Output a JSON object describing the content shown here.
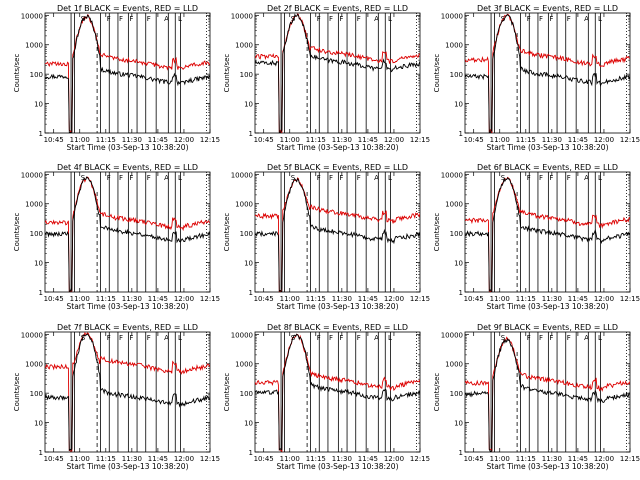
{
  "figure": {
    "background": "#ffffff",
    "colors": {
      "events": "#000000",
      "lld": "#dd0000",
      "axis": "#000000"
    }
  },
  "chart_data": [
    {
      "type": "line",
      "title": "Det 1f BLACK = Events, RED = LLD",
      "xlabel": "Start Time (03-Sep-13 10:38:20)",
      "ylabel": "Counts/sec",
      "yscale": "log",
      "ylim": [
        1,
        12000
      ],
      "xlim": [
        "10:40",
        "12:15"
      ],
      "xticks": [
        "10:45",
        "11:00",
        "11:15",
        "11:30",
        "11:45",
        "12:00",
        "12:15"
      ],
      "yticks": [
        "1",
        "10",
        "100",
        "1000",
        "10000"
      ],
      "markers": [
        "S",
        "F",
        "F",
        "F",
        "F",
        "A",
        "L"
      ],
      "grid": false,
      "series": []
    },
    {
      "type": "line",
      "title": "Det 2f BLACK = Events, RED = LLD",
      "xlabel": "Start Time (03-Sep-13 10:38:20)",
      "ylabel": "Counts/sec",
      "yscale": "log",
      "ylim": [
        1,
        12000
      ],
      "xlim": [
        "10:40",
        "12:15"
      ],
      "xticks": [
        "10:45",
        "11:00",
        "11:15",
        "11:30",
        "11:45",
        "12:00",
        "12:15"
      ],
      "yticks": [
        "1",
        "10",
        "100",
        "1000",
        "10000"
      ],
      "markers": [
        "S",
        "F",
        "F",
        "F",
        "F",
        "A",
        "L"
      ],
      "grid": false,
      "series": []
    },
    {
      "type": "line",
      "title": "Det 3f BLACK = Events, RED = LLD",
      "xlabel": "Start Time (03-Sep-13 10:38:20)",
      "ylabel": "Counts/sec",
      "yscale": "log",
      "ylim": [
        1,
        12000
      ],
      "xlim": [
        "10:40",
        "12:15"
      ],
      "xticks": [
        "10:45",
        "11:00",
        "11:15",
        "11:30",
        "11:45",
        "12:00",
        "12:15"
      ],
      "yticks": [
        "1",
        "10",
        "100",
        "1000",
        "10000"
      ],
      "markers": [
        "S",
        "F",
        "F",
        "F",
        "F",
        "A",
        "L"
      ],
      "grid": false,
      "series": []
    },
    {
      "type": "line",
      "title": "Det 4f BLACK = Events, RED = LLD",
      "xlabel": "Start Time (03-Sep-13 10:38:20)",
      "ylabel": "Counts/sec",
      "yscale": "log",
      "ylim": [
        1,
        12000
      ],
      "xlim": [
        "10:40",
        "12:15"
      ],
      "xticks": [
        "10:45",
        "11:00",
        "11:15",
        "11:30",
        "11:45",
        "12:00",
        "12:15"
      ],
      "yticks": [
        "1",
        "10",
        "100",
        "1000",
        "10000"
      ],
      "markers": [
        "S",
        "F",
        "F",
        "F",
        "F",
        "A",
        "L"
      ],
      "grid": false,
      "series": []
    },
    {
      "type": "line",
      "title": "Det 5f BLACK = Events, RED = LLD",
      "xlabel": "Start Time (03-Sep-13 10:38:20)",
      "ylabel": "Counts/sec",
      "yscale": "log",
      "ylim": [
        1,
        12000
      ],
      "xlim": [
        "10:40",
        "12:15"
      ],
      "xticks": [
        "10:45",
        "11:00",
        "11:15",
        "11:30",
        "11:45",
        "12:00",
        "12:15"
      ],
      "yticks": [
        "1",
        "10",
        "100",
        "1000",
        "10000"
      ],
      "markers": [
        "S",
        "F",
        "F",
        "F",
        "F",
        "A",
        "L"
      ],
      "grid": false,
      "series": []
    },
    {
      "type": "line",
      "title": "Det 6f BLACK = Events, RED = LLD",
      "xlabel": "Start Time (03-Sep-13 10:38:20)",
      "ylabel": "Counts/sec",
      "yscale": "log",
      "ylim": [
        1,
        12000
      ],
      "xlim": [
        "10:40",
        "12:15"
      ],
      "xticks": [
        "10:45",
        "11:00",
        "11:15",
        "11:30",
        "11:45",
        "12:00",
        "12:15"
      ],
      "yticks": [
        "1",
        "10",
        "100",
        "1000",
        "10000"
      ],
      "markers": [
        "S",
        "F",
        "F",
        "F",
        "F",
        "A",
        "L"
      ],
      "grid": false,
      "series": []
    },
    {
      "type": "line",
      "title": "Det 7f BLACK = Events, RED = LLD",
      "xlabel": "Start Time (03-Sep-13 10:38:20)",
      "ylabel": "Counts/sec",
      "yscale": "log",
      "ylim": [
        1,
        12000
      ],
      "xlim": [
        "10:40",
        "12:15"
      ],
      "xticks": [
        "10:45",
        "11:00",
        "11:15",
        "11:30",
        "11:45",
        "12:00",
        "12:15"
      ],
      "yticks": [
        "1",
        "10",
        "100",
        "1000",
        "10000"
      ],
      "markers": [
        "S",
        "F",
        "F",
        "F",
        "F",
        "A",
        "L"
      ],
      "grid": false,
      "series": []
    },
    {
      "type": "line",
      "title": "Det 8f BLACK = Events, RED = LLD",
      "xlabel": "Start Time (03-Sep-13 10:38:20)",
      "ylabel": "Counts/sec",
      "yscale": "log",
      "ylim": [
        1,
        12000
      ],
      "xlim": [
        "10:40",
        "12:15"
      ],
      "xticks": [
        "10:45",
        "11:00",
        "11:15",
        "11:30",
        "11:45",
        "12:00",
        "12:15"
      ],
      "yticks": [
        "1",
        "10",
        "100",
        "1000",
        "10000"
      ],
      "markers": [
        "S",
        "F",
        "F",
        "F",
        "F",
        "A",
        "L"
      ],
      "grid": false,
      "series": []
    },
    {
      "type": "line",
      "title": "Det 9f BLACK = Events, RED = LLD",
      "xlabel": "Start Time (03-Sep-13 10:38:20)",
      "ylabel": "Counts/sec",
      "yscale": "log",
      "ylim": [
        1,
        12000
      ],
      "xlim": [
        "10:40",
        "12:15"
      ],
      "xticks": [
        "10:45",
        "11:00",
        "11:15",
        "11:30",
        "11:45",
        "12:00",
        "12:15"
      ],
      "yticks": [
        "1",
        "10",
        "100",
        "1000",
        "10000"
      ],
      "markers": [
        "S",
        "F",
        "F",
        "F",
        "F",
        "A",
        "L"
      ],
      "grid": false,
      "series": []
    }
  ]
}
